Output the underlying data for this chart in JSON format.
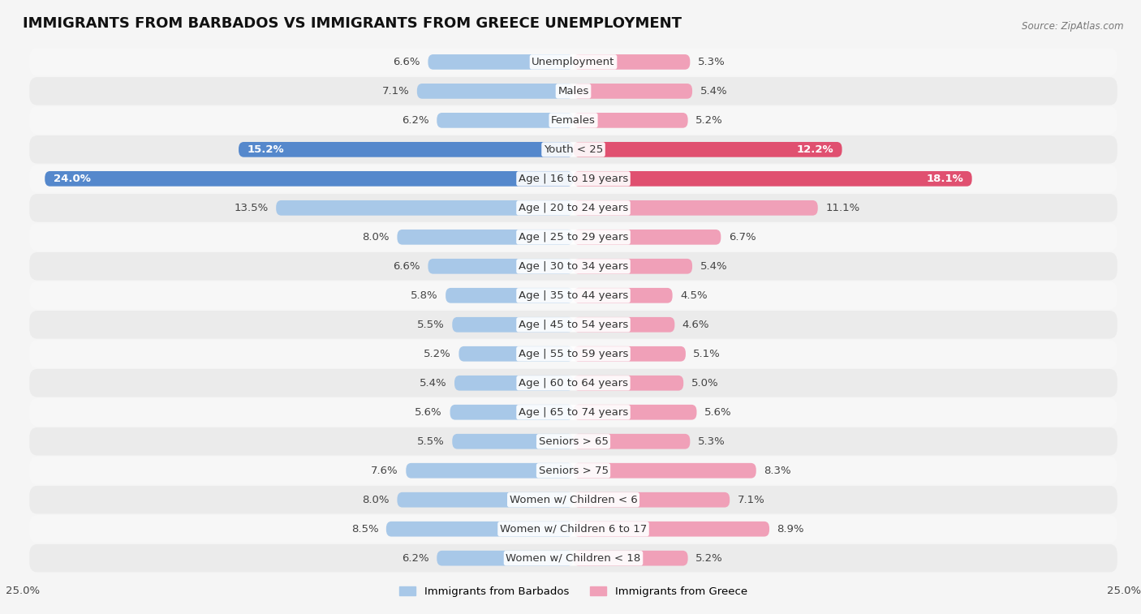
{
  "title": "IMMIGRANTS FROM BARBADOS VS IMMIGRANTS FROM GREECE UNEMPLOYMENT",
  "source": "Source: ZipAtlas.com",
  "categories": [
    "Unemployment",
    "Males",
    "Females",
    "Youth < 25",
    "Age | 16 to 19 years",
    "Age | 20 to 24 years",
    "Age | 25 to 29 years",
    "Age | 30 to 34 years",
    "Age | 35 to 44 years",
    "Age | 45 to 54 years",
    "Age | 55 to 59 years",
    "Age | 60 to 64 years",
    "Age | 65 to 74 years",
    "Seniors > 65",
    "Seniors > 75",
    "Women w/ Children < 6",
    "Women w/ Children 6 to 17",
    "Women w/ Children < 18"
  ],
  "barbados_values": [
    6.6,
    7.1,
    6.2,
    15.2,
    24.0,
    13.5,
    8.0,
    6.6,
    5.8,
    5.5,
    5.2,
    5.4,
    5.6,
    5.5,
    7.6,
    8.0,
    8.5,
    6.2
  ],
  "greece_values": [
    5.3,
    5.4,
    5.2,
    12.2,
    18.1,
    11.1,
    6.7,
    5.4,
    4.5,
    4.6,
    5.1,
    5.0,
    5.6,
    5.3,
    8.3,
    7.1,
    8.9,
    5.2
  ],
  "barbados_color": "#a8c8e8",
  "greece_color": "#f0a0b8",
  "barbados_highlight_color": "#5588cc",
  "greece_highlight_color": "#e05070",
  "highlight_rows": [
    3,
    4
  ],
  "xlim": 25.0,
  "row_bg_light": "#f7f7f7",
  "row_bg_dark": "#ebebeb",
  "fig_bg": "#f5f5f5",
  "legend_label_barbados": "Immigrants from Barbados",
  "legend_label_greece": "Immigrants from Greece",
  "title_fontsize": 13,
  "label_fontsize": 9.5,
  "value_fontsize": 9.5,
  "tick_fontsize": 9.5
}
